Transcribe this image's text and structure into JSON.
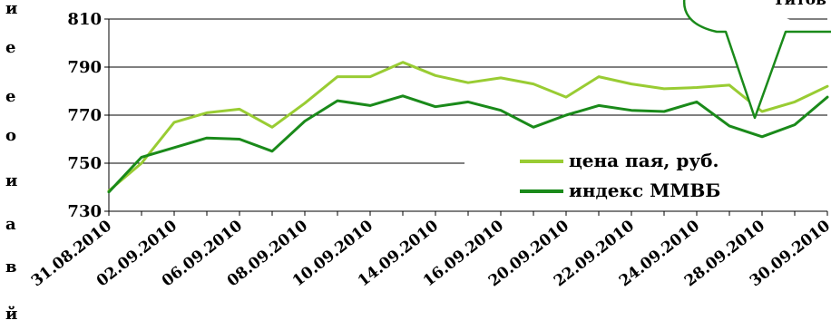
{
  "side_text": {
    "letters": [
      "и",
      "е",
      "е",
      "о",
      "и",
      "а",
      "в",
      "й"
    ]
  },
  "callout": {
    "text": "Титов"
  },
  "chart_data": {
    "type": "line",
    "title": "",
    "xlabel": "",
    "ylabel": "",
    "ylim": [
      730,
      810
    ],
    "yticks": [
      730,
      750,
      770,
      790,
      810
    ],
    "x": [
      "31.08.2010",
      "01.09.2010",
      "02.09.2010",
      "03.09.2010",
      "06.09.2010",
      "07.09.2010",
      "08.09.2010",
      "09.09.2010",
      "10.09.2010",
      "13.09.2010",
      "14.09.2010",
      "15.09.2010",
      "16.09.2010",
      "17.09.2010",
      "20.09.2010",
      "21.09.2010",
      "22.09.2010",
      "23.09.2010",
      "24.09.2010",
      "27.09.2010",
      "28.09.2010",
      "29.09.2010",
      "30.09.2010"
    ],
    "x_tick_labels": [
      "31.08.2010",
      "02.09.2010",
      "06.09.2010",
      "08.09.2010",
      "10.09.2010",
      "14.09.2010",
      "16.09.2010",
      "20.09.2010",
      "22.09.2010",
      "24.09.2010",
      "28.09.2010",
      "30.09.2010"
    ],
    "grid": "horizontal",
    "legend_position": "lower-right",
    "series": [
      {
        "name": "цена пая, руб.",
        "color": "#99cc33",
        "values": [
          738.5,
          750,
          767,
          771,
          772.5,
          765,
          775,
          786,
          786,
          792,
          786.5,
          783.5,
          785.5,
          783,
          777.5,
          786,
          783,
          781,
          781.5,
          782.5,
          771.5,
          775.5,
          782
        ]
      },
      {
        "name": "индекс ММВБ",
        "color": "#1a8a1a",
        "values": [
          738,
          752.5,
          756.5,
          760.5,
          760,
          755,
          767.5,
          776,
          774,
          778,
          773.5,
          775.5,
          772,
          765,
          770,
          774,
          772,
          771.5,
          775.5,
          765.5,
          761,
          766,
          777.5
        ]
      }
    ]
  }
}
